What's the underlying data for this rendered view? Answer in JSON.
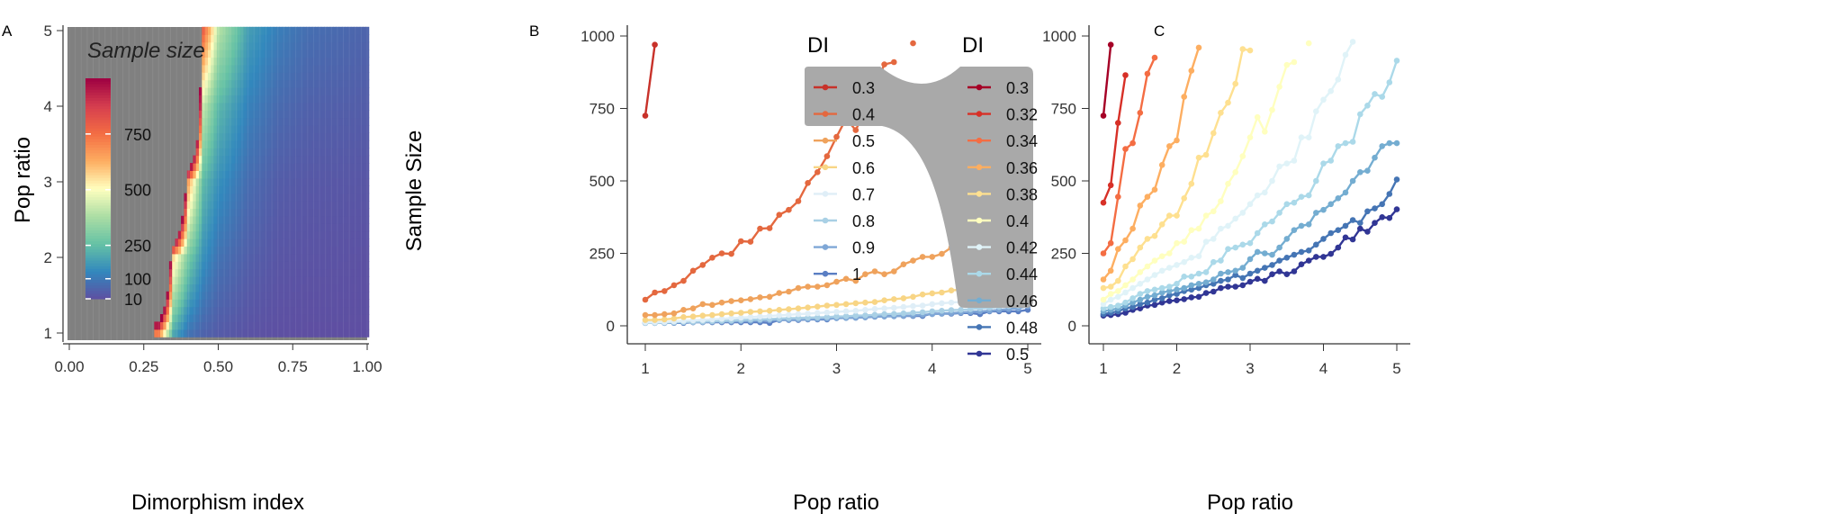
{
  "panels": {
    "a": "A",
    "b": "B",
    "c": "C"
  },
  "chart_data": [
    {
      "type": "heatmap",
      "panel": "A",
      "xlabel": "Dimorphism index",
      "ylabel": "Pop ratio",
      "xlim": [
        0,
        1
      ],
      "ylim": [
        1,
        5
      ],
      "xticks": [
        "0.00",
        "0.25",
        "0.50",
        "0.75",
        "1.00"
      ],
      "yticks": [
        "1",
        "2",
        "3",
        "4",
        "5"
      ],
      "legend_title": "Sample size",
      "colorbar_ticks": [
        10,
        100,
        250,
        500,
        750
      ],
      "colorbar_range": [
        10,
        1000
      ],
      "colorscale": [
        "#5e4fa2",
        "#3288bd",
        "#66c2a5",
        "#abdda4",
        "#ffffbf",
        "#fdae61",
        "#f46d43",
        "#d53e4f",
        "#9e0142"
      ],
      "na_color": "#808080",
      "grid_x": [
        0.3,
        0.35,
        0.4,
        0.45,
        0.5,
        0.6,
        0.7,
        0.8,
        0.9,
        1.0
      ],
      "grid_y": [
        1,
        2,
        3,
        4,
        5
      ],
      "values": [
        [
          725,
          200,
          90,
          55,
          37,
          20,
          12,
          10,
          10,
          10
        ],
        [
          null,
          560,
          290,
          150,
          88,
          45,
          25,
          20,
          18,
          15
        ],
        [
          null,
          null,
          652,
          240,
          152,
          75,
          40,
          30,
          28,
          25
        ],
        [
          null,
          null,
          null,
          420,
          238,
          120,
          70,
          50,
          45,
          40
        ],
        [
          null,
          null,
          null,
          780,
          402,
          180,
          112,
          78,
          68,
          55
        ]
      ]
    },
    {
      "type": "line",
      "panel": "B",
      "xlabel": "Pop ratio",
      "ylabel": "Sample Size",
      "xlim": [
        1,
        5
      ],
      "ylim": [
        0,
        1000
      ],
      "xticks": [
        "1",
        "2",
        "3",
        "4",
        "5"
      ],
      "yticks": [
        "0",
        "250",
        "500",
        "750",
        "1000"
      ],
      "legend_title": "DI",
      "legend_highlight": [
        "0.3",
        "0.4",
        "0.5"
      ],
      "x": [
        1.0,
        1.1,
        1.2,
        1.3,
        1.4,
        1.5,
        1.6,
        1.7,
        1.8,
        1.9,
        2.0,
        2.1,
        2.2,
        2.3,
        2.4,
        2.5,
        2.6,
        2.7,
        2.8,
        2.9,
        3.0,
        3.1,
        3.2,
        3.3,
        3.4,
        3.5,
        3.6,
        3.7,
        3.8,
        3.9,
        4.0,
        4.1,
        4.2,
        4.3,
        4.4,
        4.5,
        4.6,
        4.7,
        4.8,
        4.9,
        5.0
      ],
      "series": [
        {
          "name": "0.3",
          "color": "#c8322a",
          "values": [
            725,
            970,
            null,
            null,
            null,
            null,
            null,
            null,
            null,
            null,
            null,
            null,
            null,
            null,
            null,
            null,
            null,
            null,
            null,
            null,
            null,
            null,
            null,
            null,
            null,
            null,
            null,
            null,
            null,
            null,
            null,
            null,
            null,
            null,
            null,
            null,
            null,
            null,
            null,
            null,
            null
          ]
        },
        {
          "name": "0.4",
          "color": "#e4683f",
          "values": [
            90,
            115,
            120,
            140,
            155,
            190,
            210,
            235,
            250,
            248,
            292,
            290,
            335,
            337,
            383,
            400,
            430,
            493,
            530,
            585,
            652,
            715,
            675,
            745,
            825,
            902,
            910,
            null,
            975,
            null,
            null,
            null,
            null,
            null,
            null,
            null,
            null,
            null,
            null,
            null,
            null
          ]
        },
        {
          "name": "0.5",
          "color": "#efa25c",
          "values": [
            37,
            37,
            40,
            43,
            55,
            60,
            75,
            72,
            80,
            85,
            88,
            92,
            98,
            100,
            113,
            118,
            130,
            135,
            135,
            140,
            152,
            162,
            155,
            178,
            188,
            178,
            188,
            212,
            225,
            238,
            238,
            248,
            270,
            305,
            298,
            335,
            325,
            355,
            375,
            372,
            402
          ]
        },
        {
          "name": "0.6",
          "color": "#f8d585",
          "values": [
            20,
            20,
            22,
            25,
            30,
            32,
            35,
            37,
            40,
            43,
            45,
            48,
            50,
            52,
            55,
            57,
            60,
            63,
            66,
            70,
            72,
            75,
            78,
            80,
            82,
            88,
            92,
            95,
            100,
            108,
            112,
            115,
            122,
            125,
            130,
            137,
            140,
            148,
            155,
            152,
            180
          ]
        },
        {
          "name": "0.7",
          "color": "#dfeef7",
          "values": [
            12,
            12,
            13,
            15,
            17,
            19,
            20,
            22,
            24,
            26,
            28,
            30,
            32,
            34,
            36,
            38,
            40,
            42,
            44,
            46,
            48,
            50,
            52,
            55,
            58,
            60,
            62,
            65,
            68,
            70,
            75,
            78,
            80,
            83,
            86,
            90,
            92,
            95,
            98,
            100,
            112
          ]
        },
        {
          "name": "0.8",
          "color": "#a9d0e5",
          "values": [
            10,
            10,
            11,
            12,
            13,
            14,
            15,
            16,
            17,
            18,
            20,
            21,
            22,
            23,
            25,
            26,
            27,
            28,
            29,
            30,
            32,
            33,
            35,
            36,
            38,
            40,
            41,
            43,
            45,
            47,
            50,
            52,
            54,
            55,
            57,
            60,
            62,
            65,
            68,
            70,
            78
          ]
        },
        {
          "name": "0.9",
          "color": "#7fa7d6",
          "values": [
            10,
            10,
            10,
            11,
            12,
            12,
            13,
            14,
            15,
            15,
            16,
            17,
            18,
            19,
            20,
            21,
            22,
            23,
            24,
            25,
            26,
            27,
            28,
            29,
            31,
            32,
            33,
            35,
            36,
            38,
            40,
            42,
            44,
            46,
            48,
            50,
            52,
            55,
            58,
            60,
            68
          ]
        },
        {
          "name": "1",
          "color": "#5a7ec3",
          "values": [
            10,
            10,
            10,
            10,
            10,
            12,
            12,
            12,
            12,
            12,
            12,
            12,
            12,
            10,
            20,
            20,
            20,
            22,
            22,
            22,
            28,
            28,
            28,
            32,
            32,
            34,
            34,
            34,
            34,
            34,
            42,
            42,
            42,
            44,
            44,
            40,
            50,
            50,
            50,
            50,
            55
          ]
        }
      ]
    },
    {
      "type": "line",
      "panel": "C",
      "xlabel": "Pop ratio",
      "ylabel": "",
      "xlim": [
        1,
        5
      ],
      "ylim": [
        0,
        1000
      ],
      "xticks": [
        "1",
        "2",
        "3",
        "4",
        "5"
      ],
      "yticks": [
        "0",
        "250",
        "500",
        "750",
        "1000"
      ],
      "legend_title": "DI",
      "x": [
        1.0,
        1.1,
        1.2,
        1.3,
        1.4,
        1.5,
        1.6,
        1.7,
        1.8,
        1.9,
        2.0,
        2.1,
        2.2,
        2.3,
        2.4,
        2.5,
        2.6,
        2.7,
        2.8,
        2.9,
        3.0,
        3.1,
        3.2,
        3.3,
        3.4,
        3.5,
        3.6,
        3.7,
        3.8,
        3.9,
        4.0,
        4.1,
        4.2,
        4.3,
        4.4,
        4.5,
        4.6,
        4.7,
        4.8,
        4.9,
        5.0
      ],
      "series": [
        {
          "name": "0.3",
          "color": "#a50026",
          "values": [
            725,
            970,
            null,
            null,
            null,
            null,
            null,
            null,
            null,
            null,
            null,
            null,
            null,
            null,
            null,
            null,
            null,
            null,
            null,
            null,
            null,
            null,
            null,
            null,
            null,
            null,
            null,
            null,
            null,
            null,
            null,
            null,
            null,
            null,
            null,
            null,
            null,
            null,
            null,
            null,
            null
          ]
        },
        {
          "name": "0.32",
          "color": "#d73027",
          "values": [
            425,
            485,
            700,
            865,
            null,
            null,
            null,
            null,
            null,
            null,
            null,
            null,
            null,
            null,
            null,
            null,
            null,
            null,
            null,
            null,
            null,
            null,
            null,
            null,
            null,
            null,
            null,
            null,
            null,
            null,
            null,
            null,
            null,
            null,
            null,
            null,
            null,
            null,
            null,
            null,
            null
          ]
        },
        {
          "name": "0.34",
          "color": "#f46d43",
          "values": [
            250,
            285,
            445,
            610,
            630,
            735,
            870,
            925,
            null,
            null,
            null,
            null,
            null,
            null,
            null,
            null,
            null,
            null,
            null,
            null,
            null,
            null,
            null,
            null,
            null,
            null,
            null,
            null,
            null,
            null,
            null,
            null,
            null,
            null,
            null,
            null,
            null,
            null,
            null,
            null,
            null
          ]
        },
        {
          "name": "0.36",
          "color": "#fdae61",
          "values": [
            160,
            190,
            265,
            295,
            335,
            415,
            445,
            470,
            555,
            620,
            640,
            790,
            880,
            960,
            null,
            null,
            null,
            null,
            null,
            null,
            null,
            null,
            null,
            null,
            null,
            null,
            null,
            null,
            null,
            null,
            null,
            null,
            null,
            null,
            null,
            null,
            null,
            null,
            null,
            null,
            null
          ]
        },
        {
          "name": "0.38",
          "color": "#fee090",
          "values": [
            130,
            135,
            155,
            205,
            230,
            270,
            300,
            310,
            350,
            380,
            380,
            440,
            490,
            580,
            590,
            665,
            735,
            770,
            835,
            955,
            950,
            null,
            null,
            null,
            null,
            null,
            null,
            null,
            null,
            null,
            null,
            null,
            null,
            null,
            null,
            null,
            null,
            null,
            null,
            null,
            null
          ]
        },
        {
          "name": "0.4",
          "color": "#ffffbf",
          "values": [
            90,
            110,
            120,
            140,
            160,
            185,
            205,
            225,
            240,
            250,
            285,
            290,
            330,
            335,
            380,
            395,
            430,
            490,
            530,
            585,
            650,
            720,
            670,
            745,
            825,
            900,
            910,
            null,
            975,
            null,
            null,
            null,
            null,
            null,
            null,
            null,
            null,
            null,
            null,
            null,
            null
          ]
        },
        {
          "name": "0.42",
          "color": "#e0f3f8",
          "values": [
            75,
            90,
            100,
            115,
            130,
            145,
            160,
            175,
            190,
            200,
            210,
            220,
            235,
            240,
            290,
            300,
            335,
            345,
            370,
            390,
            420,
            450,
            460,
            500,
            550,
            560,
            570,
            650,
            650,
            740,
            780,
            810,
            850,
            935,
            980,
            null,
            null,
            null,
            null,
            null,
            null
          ]
        },
        {
          "name": "0.44",
          "color": "#abd9e9",
          "values": [
            60,
            65,
            70,
            80,
            95,
            110,
            120,
            125,
            130,
            135,
            145,
            170,
            170,
            180,
            185,
            220,
            225,
            265,
            270,
            280,
            285,
            320,
            350,
            360,
            390,
            420,
            425,
            445,
            450,
            500,
            560,
            570,
            620,
            630,
            635,
            730,
            760,
            800,
            790,
            840,
            915
          ]
        },
        {
          "name": "0.46",
          "color": "#74add1",
          "values": [
            50,
            55,
            60,
            70,
            80,
            90,
            100,
            105,
            115,
            120,
            125,
            130,
            140,
            145,
            150,
            160,
            180,
            185,
            190,
            200,
            230,
            255,
            250,
            245,
            270,
            300,
            330,
            345,
            350,
            390,
            400,
            420,
            440,
            460,
            500,
            530,
            535,
            580,
            620,
            630,
            630
          ]
        },
        {
          "name": "0.48",
          "color": "#4575b4",
          "values": [
            40,
            45,
            50,
            60,
            65,
            75,
            80,
            90,
            95,
            105,
            110,
            120,
            125,
            130,
            140,
            145,
            155,
            160,
            175,
            165,
            180,
            190,
            200,
            210,
            225,
            235,
            245,
            255,
            260,
            280,
            300,
            320,
            330,
            345,
            365,
            355,
            395,
            405,
            420,
            455,
            505
          ]
        },
        {
          "name": "0.5",
          "color": "#313695",
          "values": [
            35,
            37,
            40,
            45,
            55,
            60,
            70,
            72,
            80,
            85,
            88,
            92,
            98,
            100,
            113,
            118,
            130,
            135,
            135,
            140,
            152,
            162,
            155,
            178,
            188,
            178,
            188,
            212,
            225,
            238,
            238,
            248,
            270,
            305,
            298,
            335,
            325,
            355,
            375,
            372,
            402
          ]
        }
      ]
    }
  ]
}
